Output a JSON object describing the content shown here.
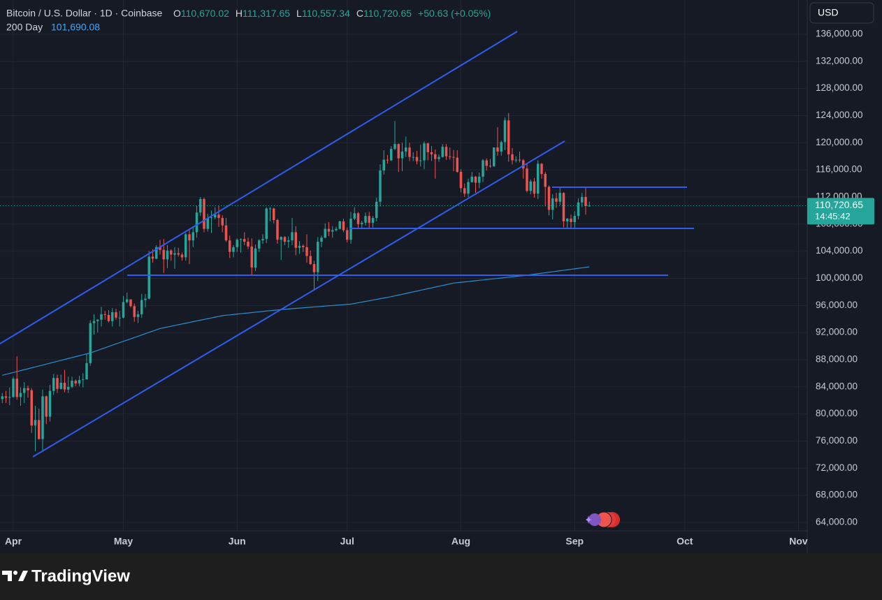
{
  "header": {
    "symbol": "Bitcoin / U.S. Dollar · 1D · Coinbase",
    "ohlc": [
      {
        "key": "O",
        "value": "110,670.02"
      },
      {
        "key": "H",
        "value": "111,317.65"
      },
      {
        "key": "L",
        "value": "110,557.34"
      },
      {
        "key": "C",
        "value": "110,720.65"
      }
    ],
    "change": "+50.63 (+0.05%)",
    "currency": "USD"
  },
  "chart_data": {
    "type": "candlestick",
    "up_color": "#26a69a",
    "down_color": "#ef5350",
    "grid": true,
    "categories": [
      null,
      null,
      null,
      "Apr",
      null,
      null,
      null,
      null,
      null,
      null,
      null,
      null,
      null,
      null,
      null,
      null,
      null,
      null,
      null,
      null,
      null,
      null,
      null,
      null,
      null,
      null,
      null,
      null,
      null,
      null,
      null,
      null,
      null,
      "May",
      null,
      null,
      null,
      null,
      null,
      null,
      null,
      null,
      null,
      null,
      null,
      null,
      null,
      null,
      null,
      null,
      null,
      null,
      null,
      null,
      null,
      null,
      null,
      null,
      null,
      null,
      null,
      null,
      null,
      null,
      "Jun",
      null,
      null,
      null,
      null,
      null,
      null,
      null,
      null,
      null,
      null,
      null,
      null,
      null,
      null,
      null,
      null,
      null,
      null,
      null,
      null,
      null,
      null,
      null,
      null,
      null,
      null,
      null,
      null,
      null,
      "Jul",
      null,
      null,
      null,
      null,
      null,
      null,
      null,
      null,
      null,
      null,
      null,
      null,
      null,
      null,
      null,
      null,
      null,
      null,
      null,
      null,
      null,
      null,
      null,
      null,
      null,
      null,
      null,
      null,
      null,
      null,
      "Aug",
      null,
      null,
      null,
      null,
      null,
      null,
      null,
      null,
      null,
      null,
      null,
      null,
      null,
      null,
      null,
      null,
      null,
      null,
      null,
      null,
      null,
      null,
      null,
      null,
      null,
      null,
      null,
      null,
      null,
      null,
      "Sep",
      null,
      null,
      null,
      null,
      null,
      null,
      null,
      null,
      null,
      null,
      null,
      null,
      null,
      null,
      null,
      null,
      null,
      null,
      null,
      null,
      null,
      null,
      null,
      null,
      null,
      null,
      null,
      null,
      null,
      "Oct",
      null,
      null,
      null,
      null,
      null,
      null,
      null,
      null,
      null,
      null,
      null,
      null,
      null,
      null,
      null,
      null,
      null,
      null,
      null,
      null,
      null,
      null,
      null,
      null,
      null,
      null,
      null,
      null,
      null,
      null,
      "Nov"
    ],
    "open": [
      82200,
      82600,
      82400,
      82500,
      85200,
      82500,
      83100,
      83800,
      83500,
      78300,
      79100,
      76300,
      82600,
      79600,
      83400,
      85300,
      83700,
      84600,
      83600,
      84000,
      84900,
      84500,
      85000,
      85100,
      87500,
      93400,
      93700,
      93900,
      94700,
      94600,
      93700,
      95000,
      94200,
      94200,
      96500,
      96900,
      95900,
      94300,
      94700,
      96800,
      97000,
      103200,
      102900,
      104600,
      104200,
      102800,
      104100,
      103500,
      103700,
      103500,
      103100,
      106500,
      105600,
      106800,
      109700,
      111700,
      107300,
      108900,
      109000,
      109400,
      108900,
      107800,
      105600,
      103900,
      104600,
      105700,
      105800,
      105400,
      104700,
      101600,
      104400,
      105600,
      105800,
      110300,
      110300,
      108600,
      105700,
      106100,
      105400,
      105600,
      106800,
      104500,
      104800,
      104600,
      103300,
      102100,
      100900,
      105400,
      106000,
      107300,
      106900,
      107100,
      107300,
      108400,
      107100,
      105700,
      108800,
      109600,
      108000,
      108200,
      109200,
      108200,
      108900,
      111300,
      115900,
      117500,
      117400,
      119100,
      119800,
      117700,
      118700,
      119300,
      117900,
      117900,
      117300,
      117400,
      119900,
      118600,
      118300,
      117600,
      117900,
      119400,
      118000,
      117900,
      117800,
      115700,
      113300,
      112500,
      114200,
      115000,
      114100,
      115000,
      117400,
      116600,
      116500,
      119300,
      118700,
      120100,
      123300,
      118300,
      117400,
      117500,
      117400,
      116200,
      112900,
      114300,
      112500,
      116900,
      115400,
      113500,
      110100,
      111800,
      111300,
      112600,
      108400,
      108800,
      108300,
      109200,
      111200,
      112000,
      110670.02,
      null,
      null,
      null,
      null,
      null,
      null,
      null,
      null,
      null,
      null,
      null,
      null,
      null,
      null,
      null,
      null,
      null,
      null,
      null,
      null,
      null,
      null,
      null,
      null,
      null,
      null,
      null,
      null,
      null,
      null,
      null,
      null,
      null,
      null,
      null,
      null,
      null,
      null,
      null,
      null,
      null,
      null,
      null,
      null,
      null,
      null,
      null,
      null,
      null,
      null,
      null,
      null,
      null,
      null,
      null,
      null,
      null
    ],
    "high": [
      83100,
      83400,
      83900,
      85500,
      88500,
      83900,
      84700,
      84200,
      83800,
      81200,
      80800,
      83600,
      82700,
      84300,
      85900,
      85800,
      85800,
      86500,
      85500,
      85500,
      85100,
      85600,
      86000,
      88800,
      93800,
      94700,
      94000,
      95800,
      95200,
      95300,
      95600,
      95500,
      95200,
      97400,
      97900,
      96900,
      96300,
      95200,
      97700,
      97700,
      104000,
      104300,
      104900,
      105700,
      105800,
      104900,
      104300,
      104600,
      104500,
      103800,
      106700,
      107100,
      107700,
      110700,
      112000,
      111900,
      109500,
      110000,
      110500,
      110700,
      109300,
      108900,
      106300,
      104900,
      105900,
      105900,
      106800,
      106000,
      105900,
      105000,
      105800,
      106500,
      110500,
      110500,
      110400,
      108800,
      106200,
      106200,
      106200,
      108900,
      107700,
      105500,
      105000,
      106500,
      104100,
      102600,
      106100,
      106300,
      108100,
      108300,
      107700,
      107600,
      108500,
      108800,
      107500,
      109800,
      110500,
      109800,
      108500,
      109700,
      109800,
      109200,
      111900,
      116800,
      118900,
      118200,
      119500,
      123200,
      119900,
      120000,
      120900,
      120000,
      118600,
      118800,
      119700,
      120200,
      120000,
      119500,
      119000,
      118300,
      119800,
      119800,
      119300,
      118900,
      118900,
      116100,
      114000,
      114700,
      115700,
      115100,
      115600,
      117600,
      117700,
      117600,
      119300,
      122300,
      120300,
      123700,
      124400,
      119200,
      118000,
      118700,
      117600,
      117000,
      114600,
      114800,
      117400,
      117000,
      115700,
      113700,
      112400,
      112600,
      113500,
      112700,
      108900,
      109400,
      109900,
      111800,
      112600,
      113400,
      111317.65,
      null,
      null,
      null,
      null,
      null,
      null,
      null,
      null,
      null,
      null,
      null,
      null,
      null,
      null,
      null,
      null,
      null,
      null,
      null,
      null,
      null,
      null,
      null,
      null,
      null,
      null,
      null,
      null,
      null,
      null,
      null,
      null,
      null,
      null,
      null,
      null,
      null,
      null,
      null,
      null,
      null,
      null,
      null,
      null,
      null,
      null,
      null,
      null,
      null,
      null,
      null,
      null,
      null,
      null,
      null,
      null,
      null
    ],
    "low": [
      81600,
      81600,
      81300,
      82400,
      82100,
      81200,
      81600,
      82400,
      77200,
      74500,
      76200,
      74600,
      78500,
      78900,
      82800,
      83100,
      83600,
      83200,
      83100,
      83800,
      84100,
      84100,
      83900,
      85100,
      87100,
      91700,
      92000,
      92900,
      93900,
      93500,
      92900,
      93900,
      92900,
      94100,
      96300,
      95700,
      93600,
      93400,
      94200,
      95700,
      96900,
      102300,
      102800,
      103500,
      100800,
      101500,
      102600,
      101400,
      103200,
      102600,
      102600,
      102100,
      104600,
      106000,
      109200,
      106800,
      106900,
      106700,
      108700,
      107600,
      106800,
      105400,
      103000,
      103100,
      103900,
      103800,
      104900,
      104300,
      100400,
      101100,
      103900,
      105100,
      105200,
      108400,
      108100,
      105100,
      102700,
      104900,
      104500,
      104900,
      103400,
      103600,
      103900,
      102300,
      102000,
      98200,
      99600,
      104600,
      105900,
      106200,
      106000,
      106900,
      107200,
      106800,
      105300,
      105100,
      108600,
      107300,
      107300,
      107800,
      107400,
      107500,
      108400,
      110600,
      115300,
      116900,
      117300,
      118900,
      115700,
      115800,
      117900,
      117300,
      117300,
      116800,
      116500,
      116100,
      117400,
      117300,
      114700,
      117200,
      117800,
      117500,
      117500,
      115800,
      115600,
      112700,
      112000,
      112000,
      114100,
      112600,
      113300,
      114200,
      115900,
      116300,
      116500,
      118100,
      118100,
      118900,
      117200,
      116800,
      117100,
      117100,
      114700,
      112700,
      112400,
      111900,
      111700,
      114700,
      110600,
      109300,
      108700,
      110400,
      110800,
      107500,
      107400,
      107300,
      107300,
      108700,
      110500,
      109400,
      110557.34,
      null,
      null,
      null,
      null,
      null,
      null,
      null,
      null,
      null,
      null,
      null,
      null,
      null,
      null,
      null,
      null,
      null,
      null,
      null,
      null,
      null,
      null,
      null,
      null,
      null,
      null,
      null,
      null,
      null,
      null,
      null,
      null,
      null,
      null,
      null,
      null,
      null,
      null,
      null,
      null,
      null,
      null,
      null,
      null,
      null,
      null,
      null,
      null,
      null,
      null,
      null,
      null,
      null,
      null,
      null,
      null,
      null
    ],
    "close": [
      82600,
      82400,
      82500,
      85200,
      82500,
      83100,
      83800,
      83500,
      78300,
      79100,
      76300,
      82600,
      79600,
      83400,
      85300,
      83700,
      84600,
      83600,
      84000,
      84900,
      84500,
      85000,
      85100,
      87500,
      93400,
      93700,
      93900,
      94700,
      94600,
      93700,
      95000,
      94200,
      94200,
      96500,
      96900,
      95900,
      94300,
      94700,
      96800,
      97000,
      103200,
      102900,
      104600,
      104200,
      102800,
      104100,
      103500,
      103700,
      103500,
      103100,
      106500,
      105600,
      106800,
      109700,
      111700,
      107300,
      108900,
      109000,
      109400,
      108900,
      107800,
      105600,
      103900,
      104600,
      105700,
      105800,
      105400,
      104700,
      101600,
      104400,
      105600,
      105800,
      110300,
      110300,
      108600,
      105700,
      106100,
      105400,
      105600,
      106800,
      104500,
      104800,
      104600,
      103300,
      102100,
      100900,
      105400,
      106000,
      107300,
      106900,
      107100,
      107300,
      108400,
      107100,
      105700,
      108800,
      109600,
      108000,
      108200,
      109200,
      108200,
      108900,
      111300,
      115900,
      117500,
      117400,
      119100,
      119800,
      117700,
      118700,
      119300,
      117900,
      117900,
      117300,
      117400,
      119900,
      118600,
      118300,
      117600,
      117900,
      119400,
      118000,
      117900,
      117800,
      115700,
      113300,
      112500,
      114200,
      115000,
      114100,
      115000,
      117400,
      116600,
      116500,
      119300,
      118700,
      120100,
      123300,
      118300,
      117400,
      117500,
      117400,
      116200,
      112900,
      114300,
      112500,
      116900,
      115400,
      113500,
      110100,
      111800,
      111300,
      112600,
      108400,
      108800,
      108300,
      109200,
      111200,
      112000,
      110670.02,
      110720.65,
      null,
      null,
      null,
      null,
      null,
      null,
      null,
      null,
      null,
      null,
      null,
      null,
      null,
      null,
      null,
      null,
      null,
      null,
      null,
      null,
      null,
      null,
      null,
      null,
      null,
      null,
      null,
      null,
      null,
      null,
      null,
      null,
      null,
      null,
      null,
      null,
      null,
      null,
      null,
      null,
      null,
      null,
      null,
      null,
      null,
      null,
      null,
      null,
      null,
      null,
      null,
      null,
      null,
      null,
      null,
      null,
      null
    ],
    "ma": {
      "name": "200 Day",
      "color": "#2b8fd0",
      "last_label": "101,690.08",
      "values": [
        85700,
        85840,
        85980,
        86110,
        86250,
        86390,
        86530,
        86660,
        86800,
        86940,
        87080,
        87210,
        87350,
        87490,
        87630,
        87760,
        87900,
        88040,
        88180,
        88310,
        88450,
        88590,
        88730,
        88860,
        89000,
        89190,
        89380,
        89570,
        89760,
        89950,
        90140,
        90330,
        90520,
        90710,
        90890,
        91080,
        91270,
        91460,
        91650,
        91840,
        92030,
        92220,
        92410,
        92600,
        92710,
        92820,
        92940,
        93050,
        93160,
        93270,
        93380,
        93490,
        93610,
        93720,
        93830,
        93940,
        94050,
        94160,
        94280,
        94390,
        94500,
        94560,
        94610,
        94670,
        94730,
        94780,
        94840,
        94890,
        94950,
        95010,
        95060,
        95120,
        95180,
        95230,
        95290,
        95340,
        95400,
        95440,
        95480,
        95530,
        95570,
        95610,
        95650,
        95690,
        95740,
        95780,
        95820,
        95860,
        95910,
        95950,
        95990,
        96030,
        96070,
        96120,
        96160,
        96200,
        96300,
        96400,
        96500,
        96600,
        96700,
        96800,
        96900,
        97000,
        97100,
        97200,
        97300,
        97420,
        97540,
        97650,
        97770,
        97890,
        98010,
        98120,
        98240,
        98360,
        98480,
        98590,
        98710,
        98830,
        98950,
        99060,
        99180,
        99300,
        99360,
        99420,
        99470,
        99530,
        99590,
        99650,
        99710,
        99760,
        99820,
        99880,
        99940,
        99990,
        100050,
        100110,
        100170,
        100230,
        100280,
        100340,
        100400,
        100470,
        100540,
        100620,
        100690,
        100760,
        100830,
        100900,
        100970,
        101050,
        101120,
        101190,
        101260,
        101330,
        101400,
        101480,
        101550,
        101620,
        101690.08,
        null,
        null,
        null,
        null,
        null,
        null,
        null,
        null,
        null,
        null,
        null,
        null,
        null,
        null,
        null,
        null,
        null,
        null,
        null,
        null,
        null,
        null,
        null,
        null,
        null,
        null,
        null,
        null,
        null,
        null,
        null,
        null,
        null,
        null,
        null,
        null,
        null,
        null,
        null,
        null,
        null,
        null,
        null,
        null,
        null,
        null,
        null,
        null,
        null,
        null,
        null,
        null,
        null,
        null,
        null,
        null,
        null
      ]
    },
    "ylim": [
      62760,
      141050
    ],
    "yticks": [
      {
        "value": 64000,
        "label": "64,000.00"
      },
      {
        "value": 68000,
        "label": "68,000.00"
      },
      {
        "value": 72000,
        "label": "72,000.00"
      },
      {
        "value": 76000,
        "label": "76,000.00"
      },
      {
        "value": 80000,
        "label": "80,000.00"
      },
      {
        "value": 84000,
        "label": "84,000.00"
      },
      {
        "value": 88000,
        "label": "88,000.00"
      },
      {
        "value": 92000,
        "label": "92,000.00"
      },
      {
        "value": 96000,
        "label": "96,000.00"
      },
      {
        "value": 100000,
        "label": "100,000.00"
      },
      {
        "value": 104000,
        "label": "104,000.00"
      },
      {
        "value": 108000,
        "label": "108,000.00"
      },
      {
        "value": 112000,
        "label": "112,000.00"
      },
      {
        "value": 116000,
        "label": "116,000.00"
      },
      {
        "value": 120000,
        "label": "120,000.00"
      },
      {
        "value": 124000,
        "label": "124,000.00"
      },
      {
        "value": 128000,
        "label": "128,000.00"
      },
      {
        "value": 132000,
        "label": "132,000.00"
      },
      {
        "value": 136000,
        "label": "136,000.00"
      }
    ],
    "last_price": {
      "value": 110720.65,
      "label": "110,720.65",
      "countdown": "14:45:42"
    }
  },
  "footer": {
    "brand": "TradingView"
  }
}
